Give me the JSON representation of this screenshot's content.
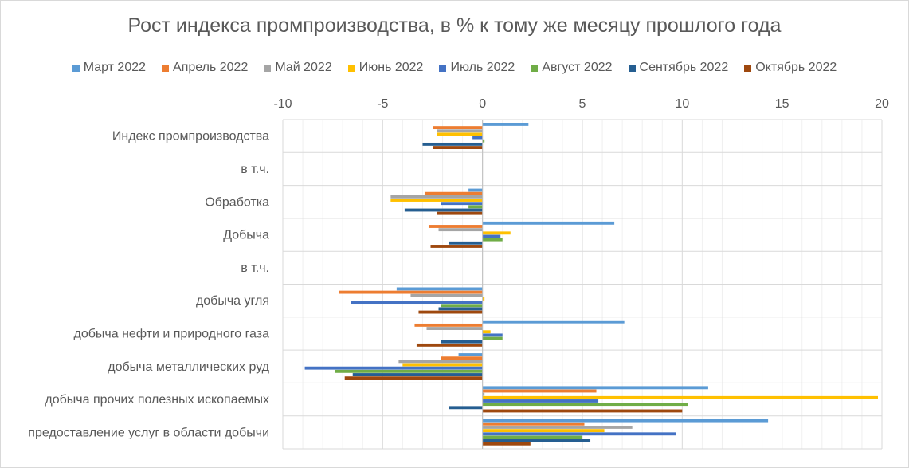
{
  "chart_data": {
    "type": "bar",
    "orientation": "horizontal",
    "title": "Рост индекса промпроизводства, в % к тому же месяцу прошлого года",
    "xlabel": "",
    "ylabel": "",
    "xlim": [
      -10,
      20
    ],
    "xticks": [
      -10,
      -5,
      0,
      5,
      10,
      15,
      20
    ],
    "xtick_labels": [
      "-10",
      "-5",
      "0",
      "5",
      "10",
      "15",
      "20"
    ],
    "x_axis_position": "top",
    "grid": true,
    "legend_position": "top",
    "categories": [
      "Индекс промпроизводства",
      "в т.ч.",
      "Обработка",
      "Добыча",
      "в т.ч.",
      "добыча угля",
      "добыча нефти и природного газа",
      "добыча металлических руд",
      "добыча прочих полезных ископаемых",
      "предоставление услуг в области добычи"
    ],
    "series": [
      {
        "name": "Март 2022",
        "color": "#5B9BD5",
        "values": [
          2.3,
          null,
          -0.7,
          6.6,
          null,
          -4.3,
          7.1,
          -1.2,
          11.3,
          14.3
        ]
      },
      {
        "name": "Апрель 2022",
        "color": "#ED7D31",
        "values": [
          -2.5,
          null,
          -2.9,
          -2.7,
          null,
          -7.2,
          -3.4,
          -2.1,
          5.7,
          5.1
        ]
      },
      {
        "name": "Май 2022",
        "color": "#A5A5A5",
        "values": [
          -2.3,
          null,
          -4.6,
          -2.2,
          null,
          -3.6,
          -2.8,
          -4.2,
          0.1,
          7.5
        ]
      },
      {
        "name": "Июнь 2022",
        "color": "#FFC000",
        "values": [
          -2.3,
          null,
          -4.6,
          1.4,
          null,
          0.1,
          0.4,
          -4.0,
          19.8,
          6.1
        ]
      },
      {
        "name": "Июль 2022",
        "color": "#4472C4",
        "values": [
          -0.5,
          null,
          -2.1,
          0.9,
          null,
          -6.6,
          1.0,
          -8.9,
          5.8,
          9.7
        ]
      },
      {
        "name": "Август 2022",
        "color": "#70AD47",
        "values": [
          0.1,
          null,
          -0.7,
          1.0,
          null,
          -2.1,
          1.0,
          -7.4,
          10.3,
          5.0
        ]
      },
      {
        "name": "Сентябрь 2022",
        "color": "#255E91",
        "values": [
          -3.0,
          null,
          -3.9,
          -1.7,
          null,
          -2.2,
          -2.1,
          -6.5,
          -1.7,
          5.4
        ]
      },
      {
        "name": "Октябрь 2022",
        "color": "#9E480E",
        "values": [
          -2.5,
          null,
          -2.3,
          -2.6,
          null,
          -3.2,
          -3.3,
          -6.9,
          10.0,
          2.4
        ]
      }
    ]
  }
}
